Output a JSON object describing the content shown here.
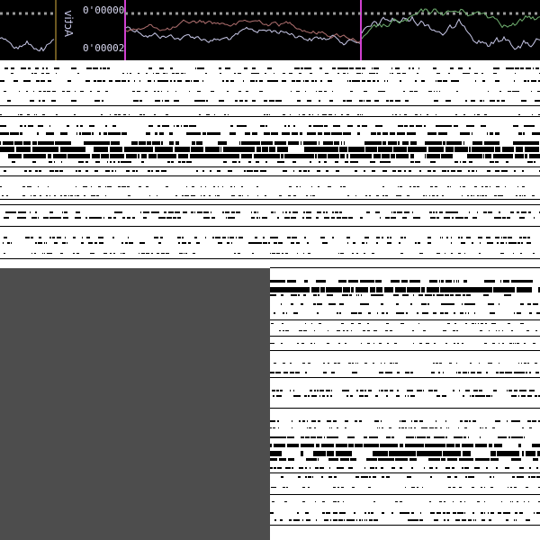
{
  "plot": {
    "axis_title": "Activ",
    "tick_top": "0'00000",
    "tick_bottom": "0'00002",
    "colors": {
      "background": "#000000",
      "trace": "#c8c8e8",
      "baseline": "#9a9a9a",
      "cursor_magenta": "#d040d0",
      "cursor_gold": "#d8b040"
    }
  },
  "panels": {
    "gray_panel_color": "#4d4d4d",
    "noise_color": "#000000"
  }
}
